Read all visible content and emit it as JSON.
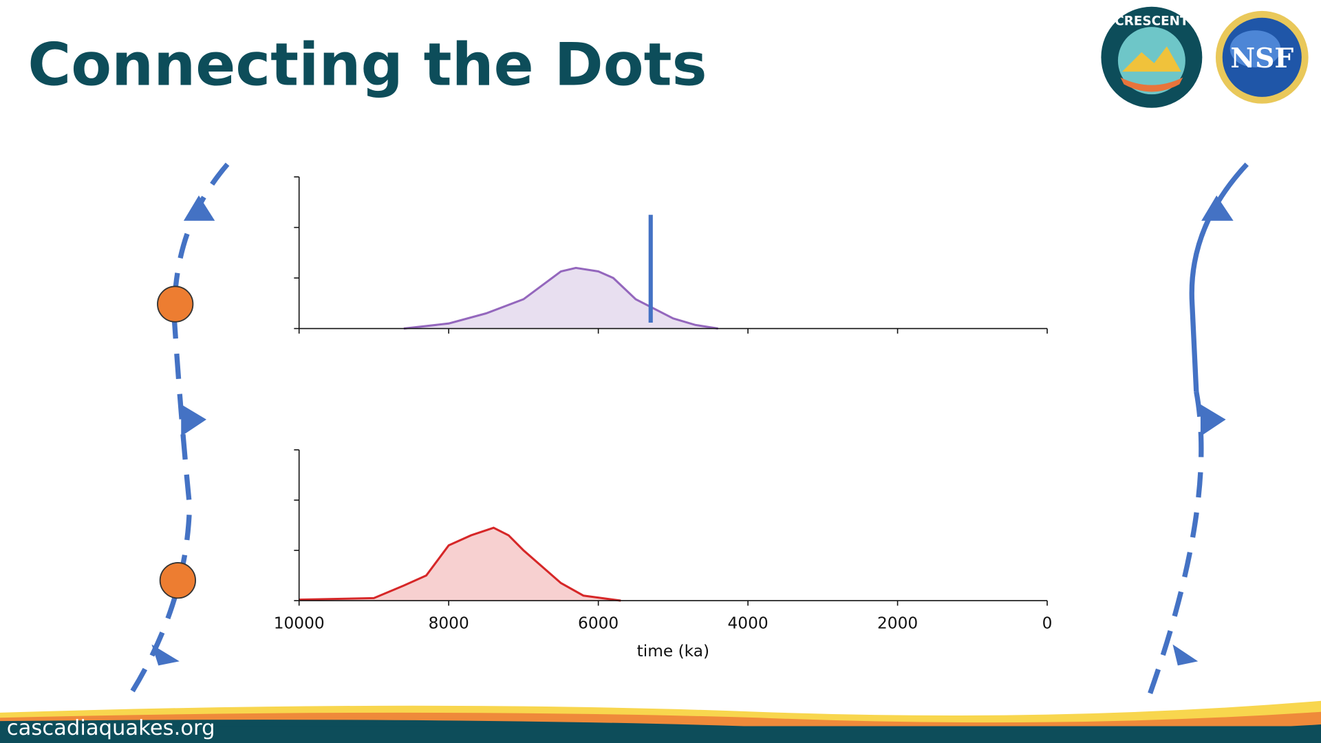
{
  "title": "Connecting the Dots",
  "footer": "cascadiaquakes.org",
  "logos": [
    "CRESCENT",
    "NSF"
  ],
  "chart_data": [
    {
      "type": "area",
      "x": [
        8600,
        8000,
        7500,
        7000,
        6500,
        6300,
        6000,
        5800,
        5500,
        5000,
        4700,
        4400
      ],
      "values": [
        0,
        0.1,
        0.3,
        0.58,
        1.13,
        1.2,
        1.13,
        1.0,
        0.58,
        0.2,
        0.07,
        0
      ],
      "color": "#9467bd",
      "fill": "#e8dff0",
      "xlim": [
        10000,
        0
      ],
      "ylim": [
        0,
        3
      ],
      "xticks": [
        10000,
        8000,
        6000,
        4000,
        2000,
        0
      ],
      "yticks": [
        0,
        1,
        2,
        3
      ],
      "vline": {
        "x": 5300,
        "top": 2.25,
        "color": "#4472c4"
      }
    },
    {
      "type": "area",
      "x": [
        10000,
        9000,
        8600,
        8300,
        8100,
        8000,
        7700,
        7400,
        7200,
        7000,
        6500,
        6200,
        5700
      ],
      "values": [
        0.02,
        0.05,
        0.3,
        0.5,
        0.9,
        1.1,
        1.3,
        1.45,
        1.3,
        1.0,
        0.35,
        0.1,
        0
      ],
      "color": "#d62728",
      "fill": "#f7d0d0",
      "xlim": [
        10000,
        0
      ],
      "ylim": [
        0,
        3
      ],
      "xticks": [
        10000,
        8000,
        6000,
        4000,
        2000,
        0
      ],
      "yticks": [
        0,
        1,
        2,
        3
      ],
      "xlabel": "time (ka)"
    }
  ]
}
